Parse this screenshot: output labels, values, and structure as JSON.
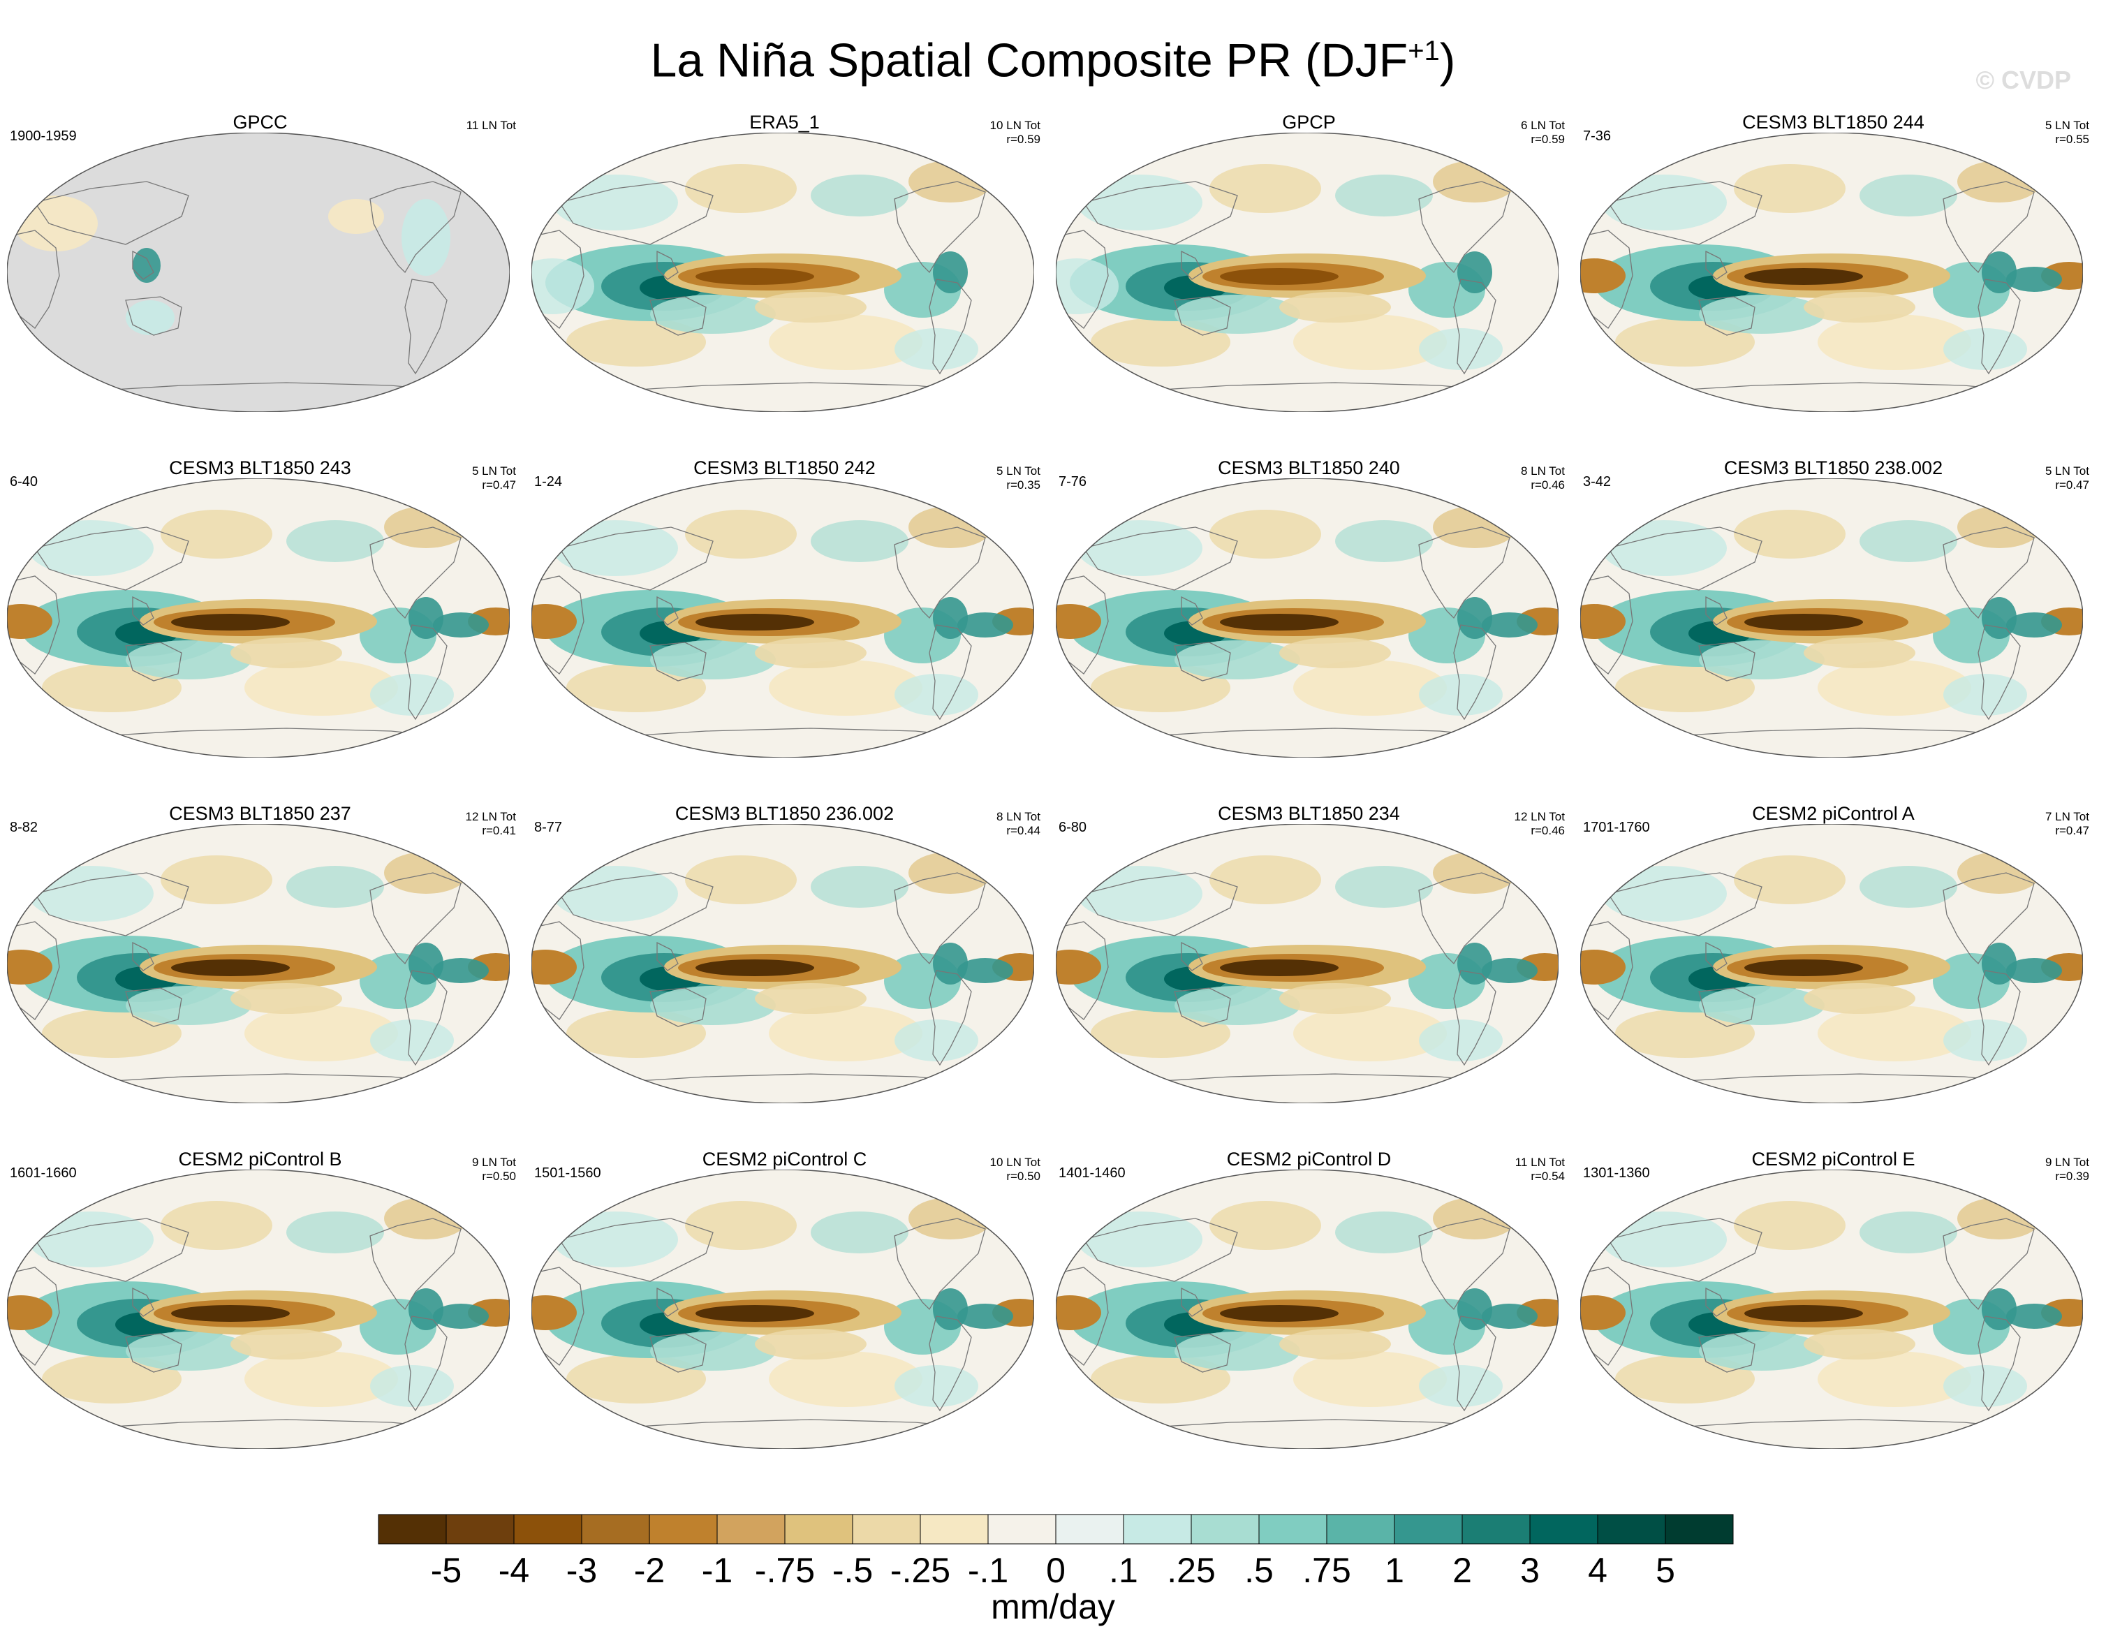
{
  "title": {
    "main": "La Niña Spatial Composite PR (DJF",
    "sup": "+1",
    "close": ")"
  },
  "watermark": "© CVDP",
  "panels": [
    {
      "title": "GPCC",
      "years": "1900-1959",
      "count": "11 LN Tot",
      "r": "",
      "style": "obs_gpcc"
    },
    {
      "title": "ERA5_1",
      "years": "",
      "count": "10 LN Tot",
      "r": "r=0.59",
      "style": "obs"
    },
    {
      "title": "GPCP",
      "years": "",
      "count": "6 LN Tot",
      "r": "r=0.59",
      "style": "obs"
    },
    {
      "title": "CESM3 BLT1850 244",
      "years": "7-36",
      "count": "5 LN Tot",
      "r": "r=0.55",
      "style": "model"
    },
    {
      "title": "CESM3 BLT1850 243",
      "years": "6-40",
      "count": "5 LN Tot",
      "r": "r=0.47",
      "style": "model"
    },
    {
      "title": "CESM3 BLT1850 242",
      "years": "1-24",
      "count": "5 LN Tot",
      "r": "r=0.35",
      "style": "model"
    },
    {
      "title": "CESM3 BLT1850 240",
      "years": "7-76",
      "count": "8 LN Tot",
      "r": "r=0.46",
      "style": "model"
    },
    {
      "title": "CESM3 BLT1850 238.002",
      "years": "3-42",
      "count": "5 LN Tot",
      "r": "r=0.47",
      "style": "model"
    },
    {
      "title": "CESM3 BLT1850 237",
      "years": "8-82",
      "count": "12 LN Tot",
      "r": "r=0.41",
      "style": "model"
    },
    {
      "title": "CESM3 BLT1850 236.002",
      "years": "8-77",
      "count": "8 LN Tot",
      "r": "r=0.44",
      "style": "model"
    },
    {
      "title": "CESM3 BLT1850 234",
      "years": "6-80",
      "count": "12 LN Tot",
      "r": "r=0.46",
      "style": "model"
    },
    {
      "title": "CESM2 piControl A",
      "years": "1701-1760",
      "count": "7 LN Tot",
      "r": "r=0.47",
      "style": "model"
    },
    {
      "title": "CESM2 piControl B",
      "years": "1601-1660",
      "count": "9 LN Tot",
      "r": "r=0.50",
      "style": "model"
    },
    {
      "title": "CESM2 piControl C",
      "years": "1501-1560",
      "count": "10 LN Tot",
      "r": "r=0.50",
      "style": "model"
    },
    {
      "title": "CESM2 piControl D",
      "years": "1401-1460",
      "count": "11 LN Tot",
      "r": "r=0.54",
      "style": "model"
    },
    {
      "title": "CESM2 piControl E",
      "years": "1301-1360",
      "count": "9 LN Tot",
      "r": "r=0.39",
      "style": "model"
    }
  ],
  "colorbar": {
    "colors": [
      "#543005",
      "#6e3f0d",
      "#8c510a",
      "#a66d22",
      "#bf812d",
      "#d2a35e",
      "#dfc27d",
      "#ecd9a8",
      "#f6e8c3",
      "#f5f2ea",
      "#eaf2f0",
      "#c7eae5",
      "#a8ddd2",
      "#80cdc1",
      "#5ab4a8",
      "#35978f",
      "#1b7e74",
      "#01665e",
      "#004f45",
      "#003c30"
    ],
    "labels": [
      "-5",
      "-4",
      "-3",
      "-2",
      "-1",
      "-.75",
      "-.5",
      "-.25",
      "-.1",
      "0",
      ".1",
      ".25",
      ".5",
      ".75",
      "1",
      "2",
      "3",
      "4",
      "5"
    ],
    "units": "mm/day"
  }
}
